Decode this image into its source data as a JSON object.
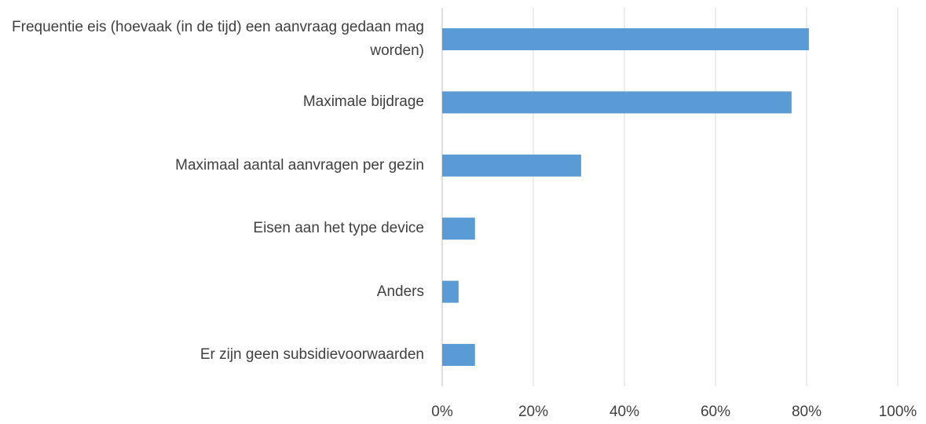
{
  "chart_data": {
    "type": "barh",
    "categories": [
      "Frequentie eis (hoevaak (in de tijd) een aanvraag gedaan mag worden)",
      "Maximale bijdrage",
      "Maximaal aantal aanvragen per gezin",
      "Eisen aan het type device",
      "Anders",
      "Er zijn geen subsidievoorwaarden"
    ],
    "values": [
      80.5,
      76.7,
      30.5,
      7.2,
      3.6,
      7.2
    ],
    "color": "#5b9bd5",
    "xlim": [
      0,
      100
    ],
    "xticks": [
      {
        "value": 0,
        "label": "0%"
      },
      {
        "value": 20,
        "label": "20%"
      },
      {
        "value": 40,
        "label": "40%"
      },
      {
        "value": 60,
        "label": "60%"
      },
      {
        "value": 80,
        "label": "80%"
      },
      {
        "value": 100,
        "label": "100%"
      }
    ],
    "grid": true
  }
}
